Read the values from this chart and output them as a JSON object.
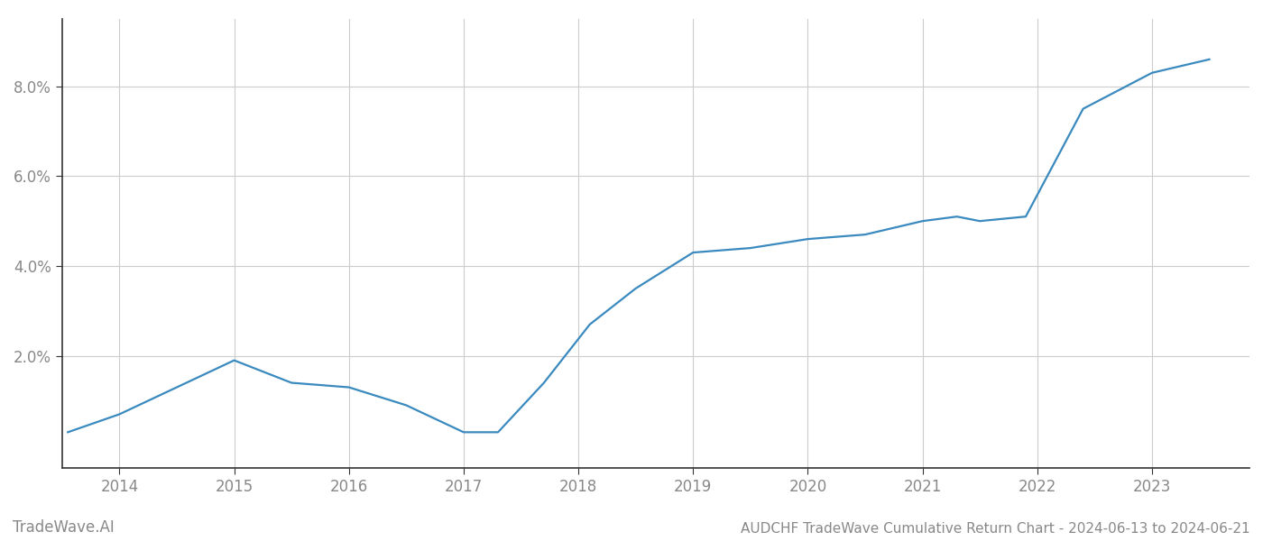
{
  "title": "AUDCHF TradeWave Cumulative Return Chart - 2024-06-13 to 2024-06-21",
  "watermark": "TradeWave.AI",
  "line_color": "#3a8abf",
  "background_color": "#ffffff",
  "grid_color": "#cccccc",
  "x_values": [
    2013.55,
    2014.0,
    2014.5,
    2015.0,
    2015.5,
    2016.0,
    2016.5,
    2017.0,
    2017.3,
    2017.7,
    2018.1,
    2018.5,
    2019.0,
    2019.5,
    2020.0,
    2020.5,
    2021.0,
    2021.3,
    2021.5,
    2021.9,
    2022.4,
    2022.7,
    2023.0,
    2023.5
  ],
  "y_values": [
    0.003,
    0.007,
    0.013,
    0.019,
    0.014,
    0.013,
    0.009,
    0.003,
    0.003,
    0.014,
    0.027,
    0.035,
    0.043,
    0.044,
    0.046,
    0.047,
    0.05,
    0.051,
    0.05,
    0.051,
    0.075,
    0.079,
    0.083,
    0.086
  ],
  "xlim": [
    2013.5,
    2023.85
  ],
  "ylim": [
    -0.005,
    0.095
  ],
  "yticks": [
    0.02,
    0.04,
    0.06,
    0.08
  ],
  "ytick_labels": [
    "2.0%",
    "4.0%",
    "6.0%",
    "8.0%"
  ],
  "xticks": [
    2014,
    2015,
    2016,
    2017,
    2018,
    2019,
    2020,
    2021,
    2022,
    2023
  ],
  "xtick_labels": [
    "2014",
    "2015",
    "2016",
    "2017",
    "2018",
    "2019",
    "2020",
    "2021",
    "2022",
    "2023"
  ],
  "line_width": 1.6,
  "font_color": "#888888",
  "title_fontsize": 11,
  "tick_fontsize": 12,
  "watermark_fontsize": 12,
  "spine_color": "#333333"
}
